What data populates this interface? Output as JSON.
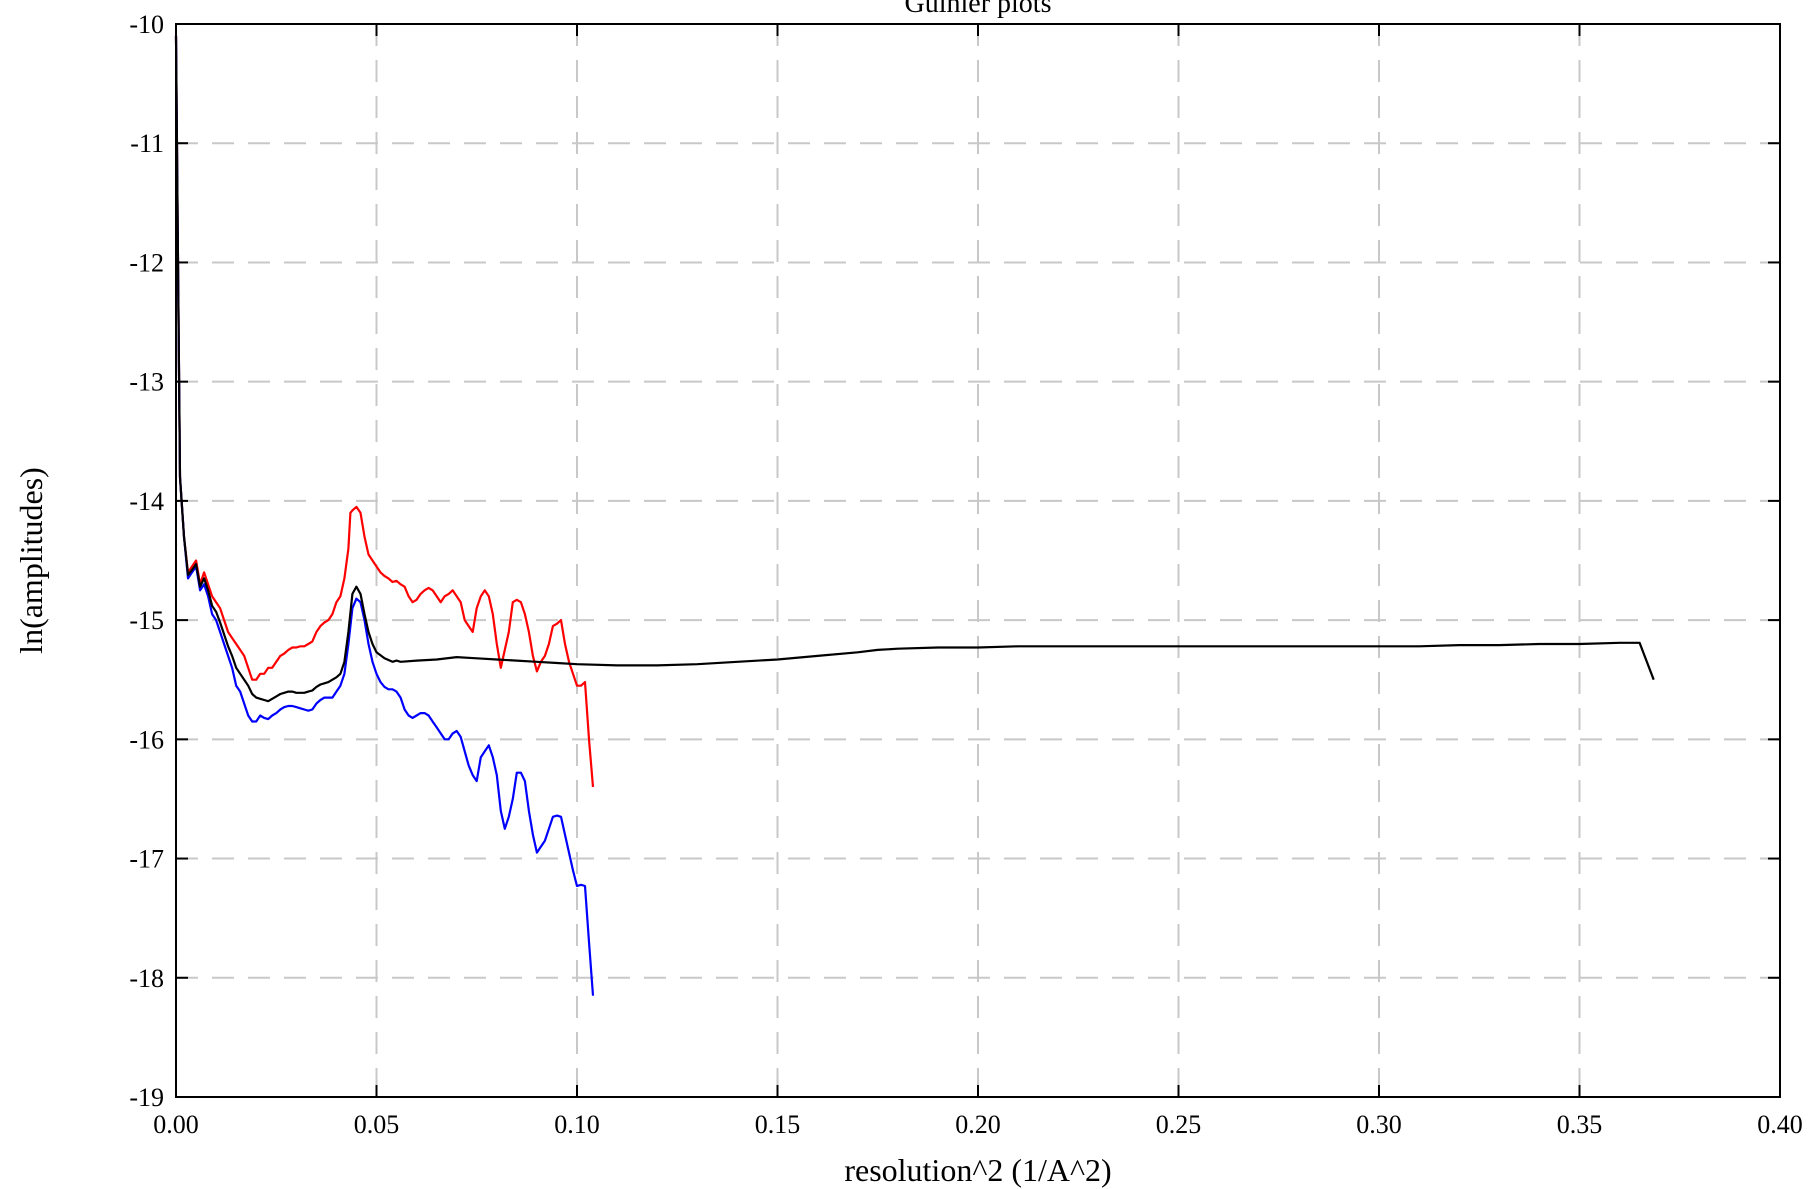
{
  "chart_data": {
    "type": "line",
    "title": "Guinier plots",
    "xlabel": "resolution^2 (1/A^2)",
    "ylabel": "ln(amplitudes)",
    "xlim": [
      0.0,
      0.4
    ],
    "ylim": [
      -19,
      -10
    ],
    "x_ticks": [
      "0.00",
      "0.05",
      "0.10",
      "0.15",
      "0.20",
      "0.25",
      "0.30",
      "0.35",
      "0.40"
    ],
    "y_ticks": [
      "-10",
      "-11",
      "-12",
      "-13",
      "-14",
      "-15",
      "-16",
      "-17",
      "-18",
      "-19"
    ],
    "grid": true,
    "legend": "none",
    "series": [
      {
        "color": "#ff0000",
        "points": [
          [
            0.0,
            -10.1
          ],
          [
            0.0005,
            -12.0
          ],
          [
            0.001,
            -13.8
          ],
          [
            0.002,
            -14.3
          ],
          [
            0.003,
            -14.6
          ],
          [
            0.004,
            -14.55
          ],
          [
            0.005,
            -14.5
          ],
          [
            0.006,
            -14.7
          ],
          [
            0.007,
            -14.6
          ],
          [
            0.008,
            -14.7
          ],
          [
            0.009,
            -14.8
          ],
          [
            0.01,
            -14.85
          ],
          [
            0.011,
            -14.9
          ],
          [
            0.012,
            -15.0
          ],
          [
            0.013,
            -15.1
          ],
          [
            0.014,
            -15.15
          ],
          [
            0.015,
            -15.2
          ],
          [
            0.016,
            -15.25
          ],
          [
            0.017,
            -15.3
          ],
          [
            0.018,
            -15.4
          ],
          [
            0.019,
            -15.5
          ],
          [
            0.02,
            -15.5
          ],
          [
            0.021,
            -15.45
          ],
          [
            0.022,
            -15.45
          ],
          [
            0.023,
            -15.4
          ],
          [
            0.024,
            -15.4
          ],
          [
            0.025,
            -15.35
          ],
          [
            0.026,
            -15.3
          ],
          [
            0.027,
            -15.28
          ],
          [
            0.028,
            -15.25
          ],
          [
            0.029,
            -15.23
          ],
          [
            0.03,
            -15.23
          ],
          [
            0.031,
            -15.22
          ],
          [
            0.032,
            -15.22
          ],
          [
            0.033,
            -15.2
          ],
          [
            0.034,
            -15.18
          ],
          [
            0.035,
            -15.1
          ],
          [
            0.036,
            -15.05
          ],
          [
            0.037,
            -15.02
          ],
          [
            0.038,
            -15.0
          ],
          [
            0.039,
            -14.95
          ],
          [
            0.04,
            -14.85
          ],
          [
            0.041,
            -14.8
          ],
          [
            0.042,
            -14.65
          ],
          [
            0.043,
            -14.4
          ],
          [
            0.0435,
            -14.1
          ],
          [
            0.044,
            -14.08
          ],
          [
            0.045,
            -14.05
          ],
          [
            0.046,
            -14.1
          ],
          [
            0.047,
            -14.3
          ],
          [
            0.048,
            -14.45
          ],
          [
            0.049,
            -14.5
          ],
          [
            0.05,
            -14.55
          ],
          [
            0.051,
            -14.6
          ],
          [
            0.052,
            -14.63
          ],
          [
            0.053,
            -14.65
          ],
          [
            0.054,
            -14.68
          ],
          [
            0.055,
            -14.67
          ],
          [
            0.056,
            -14.7
          ],
          [
            0.057,
            -14.72
          ],
          [
            0.058,
            -14.8
          ],
          [
            0.059,
            -14.85
          ],
          [
            0.06,
            -14.83
          ],
          [
            0.061,
            -14.78
          ],
          [
            0.062,
            -14.75
          ],
          [
            0.063,
            -14.73
          ],
          [
            0.064,
            -14.75
          ],
          [
            0.065,
            -14.8
          ],
          [
            0.066,
            -14.85
          ],
          [
            0.067,
            -14.8
          ],
          [
            0.068,
            -14.78
          ],
          [
            0.069,
            -14.75
          ],
          [
            0.07,
            -14.8
          ],
          [
            0.071,
            -14.85
          ],
          [
            0.072,
            -15.0
          ],
          [
            0.073,
            -15.05
          ],
          [
            0.074,
            -15.1
          ],
          [
            0.075,
            -14.9
          ],
          [
            0.076,
            -14.8
          ],
          [
            0.077,
            -14.75
          ],
          [
            0.078,
            -14.8
          ],
          [
            0.079,
            -14.95
          ],
          [
            0.08,
            -15.2
          ],
          [
            0.081,
            -15.4
          ],
          [
            0.082,
            -15.25
          ],
          [
            0.083,
            -15.1
          ],
          [
            0.084,
            -14.85
          ],
          [
            0.085,
            -14.83
          ],
          [
            0.086,
            -14.85
          ],
          [
            0.087,
            -14.95
          ],
          [
            0.088,
            -15.1
          ],
          [
            0.089,
            -15.3
          ],
          [
            0.09,
            -15.43
          ],
          [
            0.091,
            -15.35
          ],
          [
            0.092,
            -15.3
          ],
          [
            0.093,
            -15.2
          ],
          [
            0.094,
            -15.05
          ],
          [
            0.095,
            -15.03
          ],
          [
            0.096,
            -15.0
          ],
          [
            0.097,
            -15.2
          ],
          [
            0.098,
            -15.35
          ],
          [
            0.099,
            -15.45
          ],
          [
            0.1,
            -15.55
          ],
          [
            0.101,
            -15.55
          ],
          [
            0.102,
            -15.52
          ],
          [
            0.103,
            -16.0
          ],
          [
            0.104,
            -16.4
          ]
        ]
      },
      {
        "color": "#0000ff",
        "points": [
          [
            0.0,
            -10.1
          ],
          [
            0.0005,
            -12.0
          ],
          [
            0.001,
            -13.8
          ],
          [
            0.002,
            -14.3
          ],
          [
            0.003,
            -14.65
          ],
          [
            0.004,
            -14.6
          ],
          [
            0.005,
            -14.55
          ],
          [
            0.006,
            -14.75
          ],
          [
            0.007,
            -14.7
          ],
          [
            0.008,
            -14.8
          ],
          [
            0.009,
            -14.95
          ],
          [
            0.01,
            -15.0
          ],
          [
            0.011,
            -15.1
          ],
          [
            0.012,
            -15.2
          ],
          [
            0.013,
            -15.3
          ],
          [
            0.014,
            -15.4
          ],
          [
            0.015,
            -15.55
          ],
          [
            0.016,
            -15.6
          ],
          [
            0.017,
            -15.7
          ],
          [
            0.018,
            -15.8
          ],
          [
            0.019,
            -15.85
          ],
          [
            0.02,
            -15.85
          ],
          [
            0.021,
            -15.8
          ],
          [
            0.022,
            -15.82
          ],
          [
            0.023,
            -15.83
          ],
          [
            0.024,
            -15.8
          ],
          [
            0.025,
            -15.78
          ],
          [
            0.026,
            -15.75
          ],
          [
            0.027,
            -15.73
          ],
          [
            0.028,
            -15.72
          ],
          [
            0.029,
            -15.72
          ],
          [
            0.03,
            -15.73
          ],
          [
            0.031,
            -15.74
          ],
          [
            0.032,
            -15.75
          ],
          [
            0.033,
            -15.76
          ],
          [
            0.034,
            -15.75
          ],
          [
            0.035,
            -15.7
          ],
          [
            0.036,
            -15.67
          ],
          [
            0.037,
            -15.65
          ],
          [
            0.038,
            -15.65
          ],
          [
            0.039,
            -15.65
          ],
          [
            0.04,
            -15.6
          ],
          [
            0.041,
            -15.55
          ],
          [
            0.042,
            -15.45
          ],
          [
            0.043,
            -15.2
          ],
          [
            0.044,
            -14.9
          ],
          [
            0.045,
            -14.82
          ],
          [
            0.046,
            -14.85
          ],
          [
            0.047,
            -15.0
          ],
          [
            0.048,
            -15.2
          ],
          [
            0.049,
            -15.35
          ],
          [
            0.05,
            -15.45
          ],
          [
            0.051,
            -15.52
          ],
          [
            0.052,
            -15.56
          ],
          [
            0.053,
            -15.58
          ],
          [
            0.054,
            -15.58
          ],
          [
            0.055,
            -15.6
          ],
          [
            0.056,
            -15.65
          ],
          [
            0.057,
            -15.75
          ],
          [
            0.058,
            -15.8
          ],
          [
            0.059,
            -15.82
          ],
          [
            0.06,
            -15.8
          ],
          [
            0.061,
            -15.78
          ],
          [
            0.062,
            -15.78
          ],
          [
            0.063,
            -15.8
          ],
          [
            0.064,
            -15.85
          ],
          [
            0.065,
            -15.9
          ],
          [
            0.066,
            -15.95
          ],
          [
            0.067,
            -16.0
          ],
          [
            0.068,
            -16.0
          ],
          [
            0.069,
            -15.95
          ],
          [
            0.07,
            -15.93
          ],
          [
            0.071,
            -15.98
          ],
          [
            0.072,
            -16.1
          ],
          [
            0.073,
            -16.22
          ],
          [
            0.074,
            -16.3
          ],
          [
            0.075,
            -16.35
          ],
          [
            0.076,
            -16.15
          ],
          [
            0.077,
            -16.1
          ],
          [
            0.078,
            -16.05
          ],
          [
            0.079,
            -16.15
          ],
          [
            0.08,
            -16.3
          ],
          [
            0.081,
            -16.6
          ],
          [
            0.082,
            -16.75
          ],
          [
            0.083,
            -16.65
          ],
          [
            0.084,
            -16.5
          ],
          [
            0.085,
            -16.28
          ],
          [
            0.086,
            -16.28
          ],
          [
            0.087,
            -16.35
          ],
          [
            0.088,
            -16.6
          ],
          [
            0.089,
            -16.8
          ],
          [
            0.09,
            -16.95
          ],
          [
            0.091,
            -16.9
          ],
          [
            0.092,
            -16.85
          ],
          [
            0.093,
            -16.75
          ],
          [
            0.094,
            -16.65
          ],
          [
            0.095,
            -16.64
          ],
          [
            0.096,
            -16.65
          ],
          [
            0.097,
            -16.8
          ],
          [
            0.098,
            -16.95
          ],
          [
            0.099,
            -17.1
          ],
          [
            0.1,
            -17.23
          ],
          [
            0.101,
            -17.22
          ],
          [
            0.102,
            -17.23
          ],
          [
            0.103,
            -17.7
          ],
          [
            0.104,
            -18.15
          ]
        ]
      },
      {
        "color": "#000000",
        "points": [
          [
            0.0,
            -10.1
          ],
          [
            0.0005,
            -12.0
          ],
          [
            0.001,
            -13.8
          ],
          [
            0.002,
            -14.3
          ],
          [
            0.003,
            -14.62
          ],
          [
            0.004,
            -14.58
          ],
          [
            0.005,
            -14.53
          ],
          [
            0.006,
            -14.72
          ],
          [
            0.007,
            -14.65
          ],
          [
            0.008,
            -14.75
          ],
          [
            0.009,
            -14.88
          ],
          [
            0.01,
            -14.93
          ],
          [
            0.011,
            -15.02
          ],
          [
            0.012,
            -15.12
          ],
          [
            0.013,
            -15.22
          ],
          [
            0.014,
            -15.3
          ],
          [
            0.015,
            -15.4
          ],
          [
            0.016,
            -15.45
          ],
          [
            0.017,
            -15.5
          ],
          [
            0.018,
            -15.55
          ],
          [
            0.019,
            -15.62
          ],
          [
            0.02,
            -15.65
          ],
          [
            0.021,
            -15.66
          ],
          [
            0.022,
            -15.67
          ],
          [
            0.023,
            -15.68
          ],
          [
            0.024,
            -15.66
          ],
          [
            0.025,
            -15.64
          ],
          [
            0.026,
            -15.62
          ],
          [
            0.027,
            -15.61
          ],
          [
            0.028,
            -15.6
          ],
          [
            0.029,
            -15.6
          ],
          [
            0.03,
            -15.61
          ],
          [
            0.031,
            -15.61
          ],
          [
            0.032,
            -15.61
          ],
          [
            0.033,
            -15.6
          ],
          [
            0.034,
            -15.59
          ],
          [
            0.035,
            -15.56
          ],
          [
            0.036,
            -15.54
          ],
          [
            0.037,
            -15.53
          ],
          [
            0.038,
            -15.52
          ],
          [
            0.039,
            -15.5
          ],
          [
            0.04,
            -15.48
          ],
          [
            0.041,
            -15.45
          ],
          [
            0.042,
            -15.35
          ],
          [
            0.043,
            -15.1
          ],
          [
            0.044,
            -14.78
          ],
          [
            0.045,
            -14.72
          ],
          [
            0.046,
            -14.78
          ],
          [
            0.047,
            -14.95
          ],
          [
            0.048,
            -15.1
          ],
          [
            0.049,
            -15.2
          ],
          [
            0.05,
            -15.27
          ],
          [
            0.052,
            -15.32
          ],
          [
            0.054,
            -15.35
          ],
          [
            0.055,
            -15.34
          ],
          [
            0.056,
            -15.35
          ],
          [
            0.06,
            -15.34
          ],
          [
            0.065,
            -15.33
          ],
          [
            0.07,
            -15.31
          ],
          [
            0.075,
            -15.32
          ],
          [
            0.08,
            -15.33
          ],
          [
            0.085,
            -15.34
          ],
          [
            0.09,
            -15.35
          ],
          [
            0.095,
            -15.36
          ],
          [
            0.1,
            -15.37
          ],
          [
            0.11,
            -15.38
          ],
          [
            0.12,
            -15.38
          ],
          [
            0.13,
            -15.37
          ],
          [
            0.14,
            -15.35
          ],
          [
            0.15,
            -15.33
          ],
          [
            0.16,
            -15.3
          ],
          [
            0.17,
            -15.27
          ],
          [
            0.175,
            -15.25
          ],
          [
            0.18,
            -15.24
          ],
          [
            0.19,
            -15.23
          ],
          [
            0.2,
            -15.23
          ],
          [
            0.21,
            -15.22
          ],
          [
            0.22,
            -15.22
          ],
          [
            0.23,
            -15.22
          ],
          [
            0.24,
            -15.22
          ],
          [
            0.25,
            -15.22
          ],
          [
            0.26,
            -15.22
          ],
          [
            0.27,
            -15.22
          ],
          [
            0.28,
            -15.22
          ],
          [
            0.29,
            -15.22
          ],
          [
            0.3,
            -15.22
          ],
          [
            0.31,
            -15.22
          ],
          [
            0.32,
            -15.21
          ],
          [
            0.33,
            -15.21
          ],
          [
            0.34,
            -15.2
          ],
          [
            0.35,
            -15.2
          ],
          [
            0.36,
            -15.19
          ],
          [
            0.365,
            -15.19
          ],
          [
            0.3685,
            -15.5
          ]
        ]
      }
    ]
  }
}
